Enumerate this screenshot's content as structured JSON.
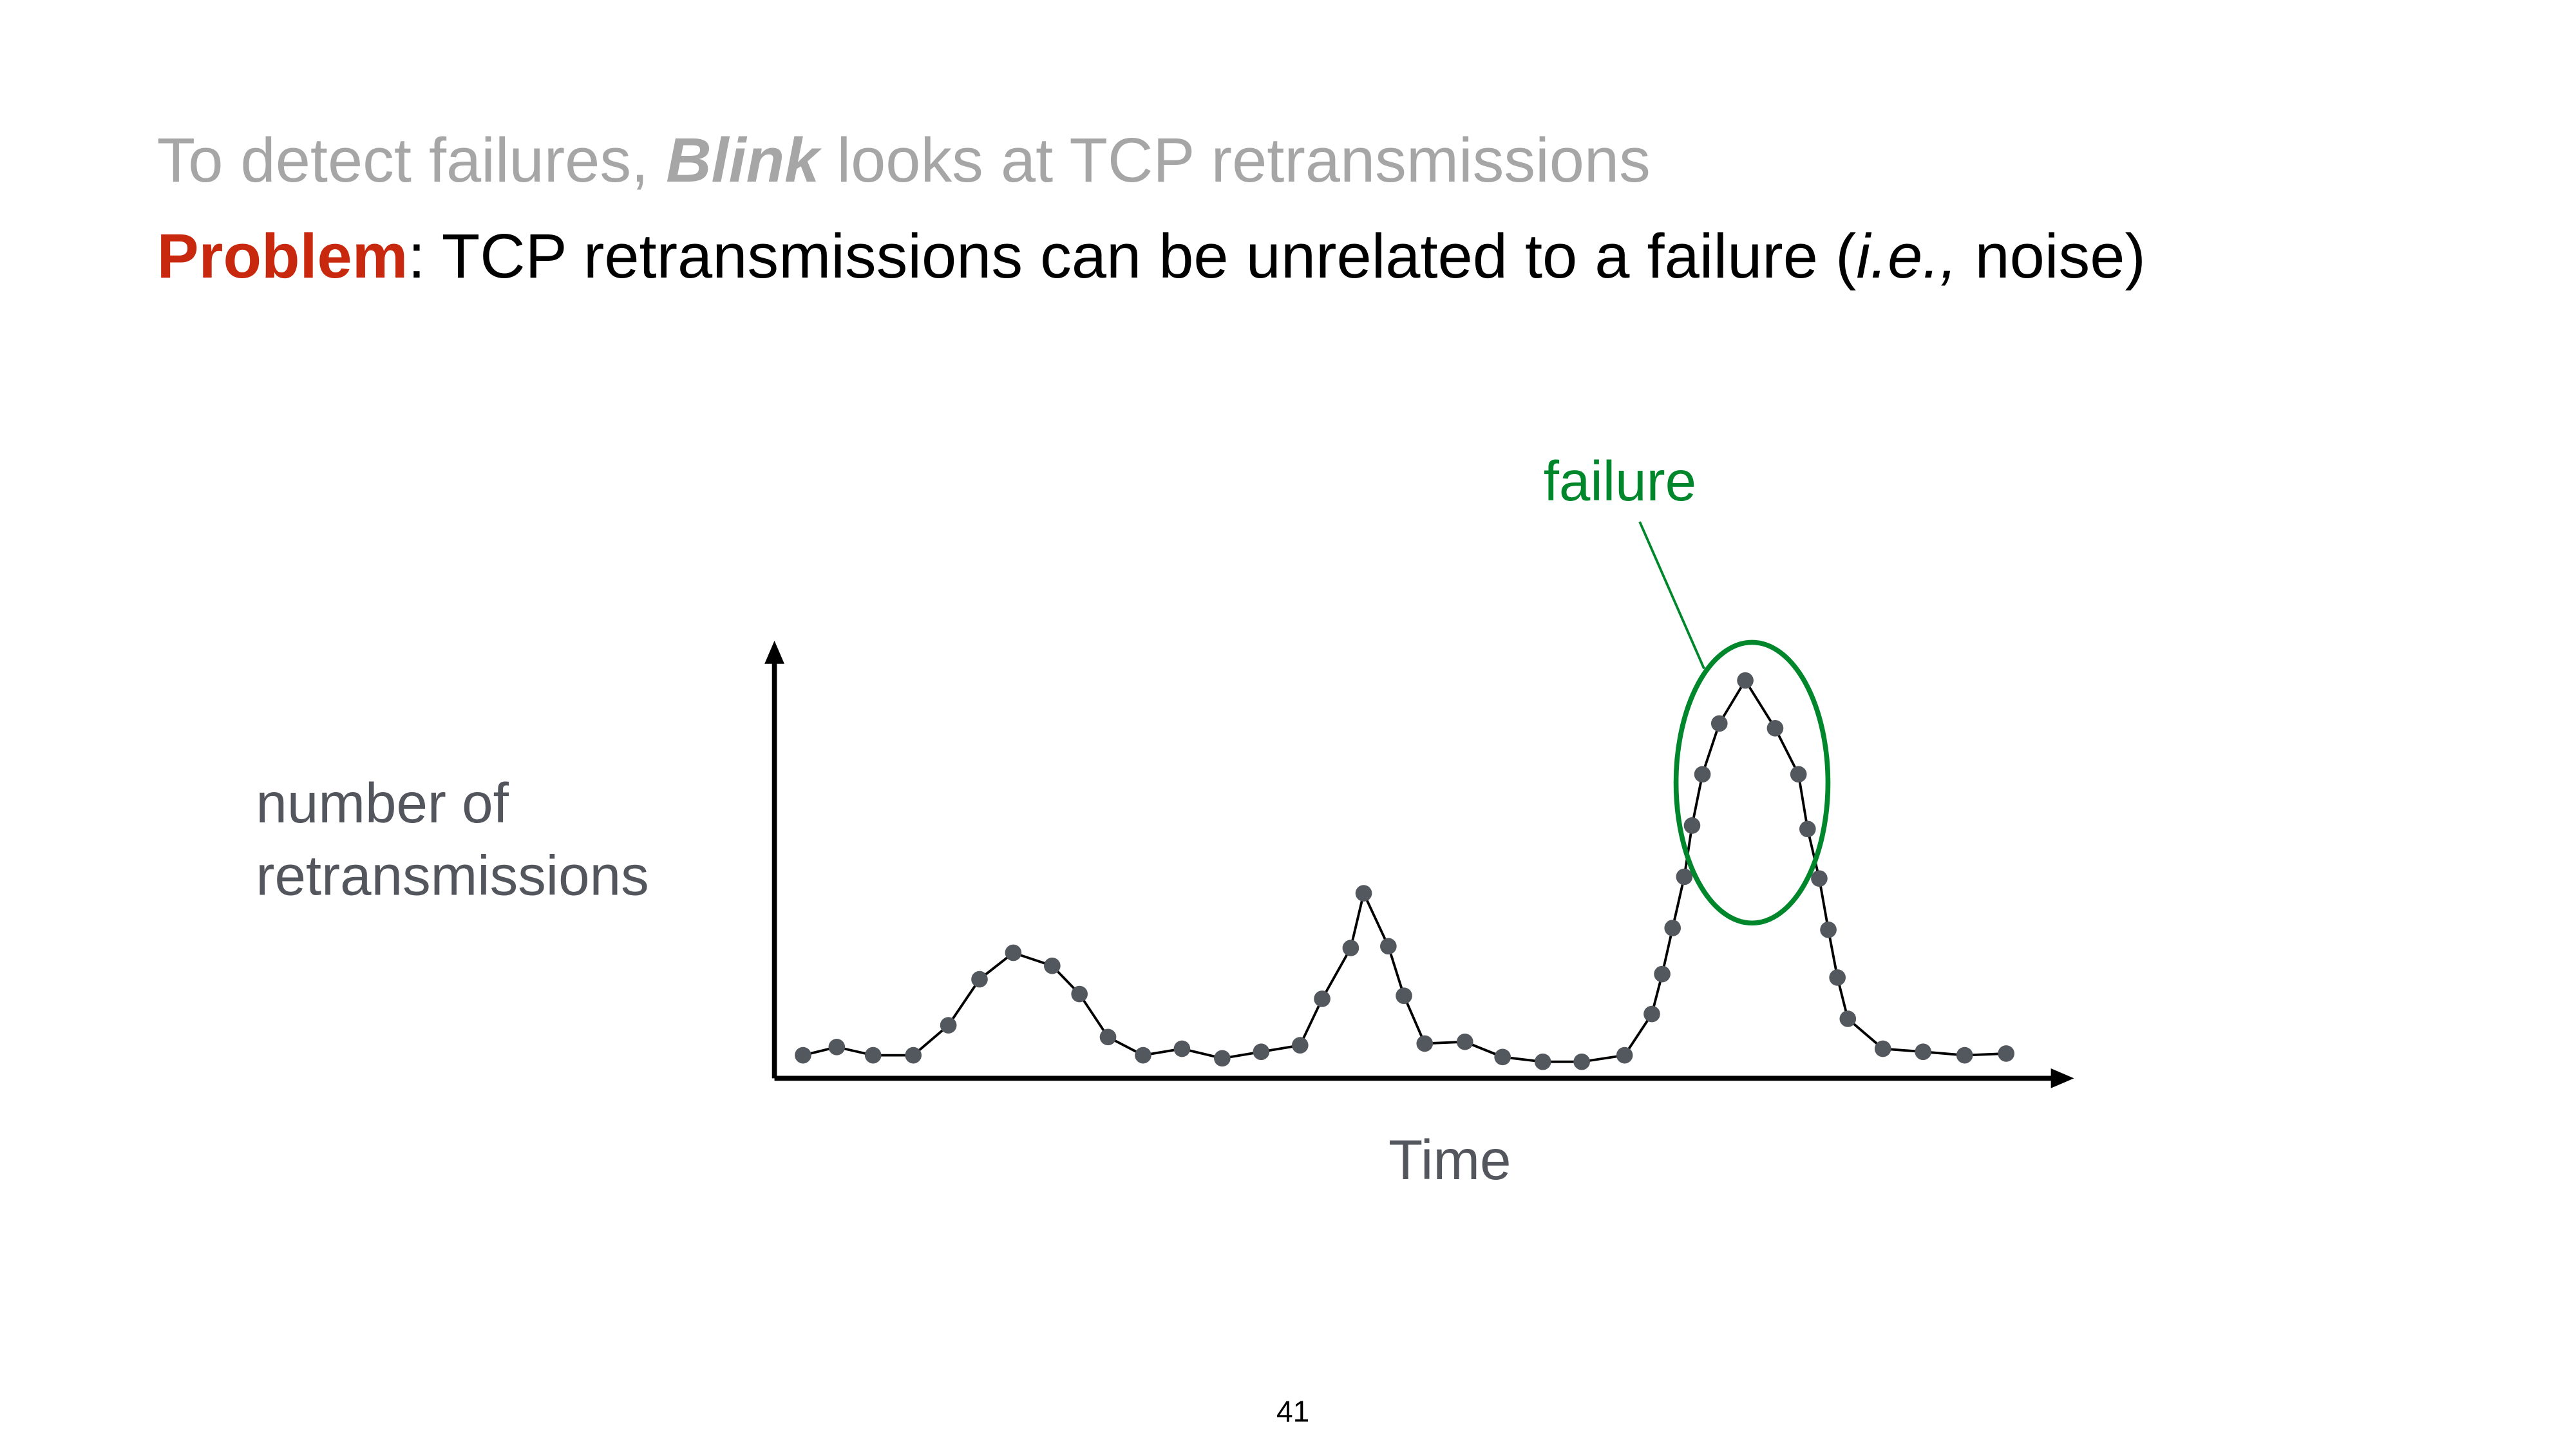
{
  "slide": {
    "title_line1": {
      "part1": "To detect failures, ",
      "emphasis": "Blink",
      "part2": " looks at TCP retransmissions"
    },
    "title_line2": {
      "label": "Problem",
      "part1": ": TCP retransmissions can be unrelated to a failure (",
      "italic": "i.e.,",
      "part2": " noise)"
    },
    "page_number": "41"
  },
  "colors": {
    "muted": "#a6a6a6",
    "problem": "#c8290e",
    "failure": "#00872b",
    "points": "#53575e",
    "label": "#53565c"
  },
  "chart_data": {
    "type": "line",
    "xlabel": "Time",
    "ylabel_lines": [
      "number of",
      "retransmissions"
    ],
    "xlim": [
      0,
      100
    ],
    "ylim": [
      0,
      100
    ],
    "grid": false,
    "x": [
      2.2,
      4.8,
      7.6,
      10.7,
      13.4,
      15.8,
      18.4,
      21.4,
      23.5,
      25.7,
      28.4,
      31.4,
      34.5,
      37.5,
      40.5,
      42.2,
      44.4,
      45.4,
      47.3,
      48.5,
      50.1,
      53.2,
      56.1,
      59.2,
      62.2,
      65.5,
      67.6,
      68.4,
      69.2,
      70.1,
      70.7,
      71.5,
      72.8,
      74.8,
      77.1,
      78.9,
      79.6,
      80.5,
      81.2,
      81.9,
      82.7,
      85.4,
      88.5,
      91.7,
      94.9
    ],
    "y": [
      5.3,
      7.2,
      5.3,
      5.3,
      12.2,
      22.8,
      28.9,
      25.9,
      19.4,
      9.5,
      5.3,
      6.8,
      4.6,
      6.1,
      7.6,
      18.3,
      30.0,
      42.6,
      30.4,
      19.0,
      8.0,
      8.4,
      4.9,
      3.8,
      3.8,
      5.3,
      14.8,
      24.0,
      34.6,
      46.4,
      58.2,
      70.0,
      81.7,
      91.6,
      80.6,
      70.0,
      57.4,
      46.0,
      34.2,
      23.2,
      13.7,
      6.8,
      6.1,
      5.3,
      5.7
    ],
    "annotation": {
      "text": "failure",
      "marks_points_from_x": 70.7,
      "marks_points_to_x": 80.5
    }
  }
}
